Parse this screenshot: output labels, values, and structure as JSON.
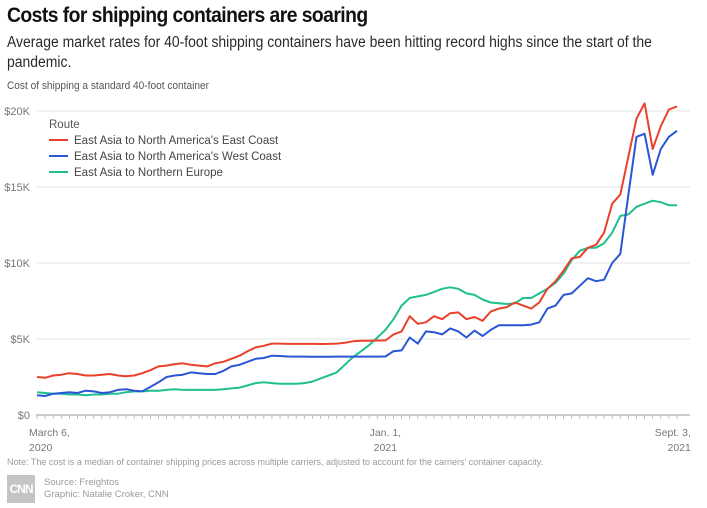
{
  "header": {
    "title": "Costs for shipping containers are soaring",
    "subtitle": "Average market rates for 40-foot shipping containers have been hitting record highs since the start of the pandemic.",
    "chart_label": "Cost of shipping a standard 40-foot container"
  },
  "footer": {
    "note": "Note: The cost is a median of container shipping prices across multiple carriers, adjusted to account for the carriers' container capacity.",
    "logo": "CNN",
    "source": "Source:  Freightos",
    "graphic": "Graphic: Natalie Croker, CNN"
  },
  "chart_data": {
    "type": "line",
    "title": "Costs for shipping containers are soaring",
    "subtitle": "Cost of shipping a standard 40-foot container",
    "xlabel": "",
    "ylabel": "",
    "x_start": "2020-03-06",
    "x_end": "2021-09-03",
    "x_interval": "weekly",
    "ylim": [
      0,
      20000
    ],
    "yticks": [
      0,
      5000,
      10000,
      15000,
      20000
    ],
    "ytick_labels": [
      "$0",
      "$5K",
      "$10K",
      "$15K",
      "$20K"
    ],
    "xtick_labels": [
      {
        "index": 0,
        "line1": "March 6,",
        "line2": "2020"
      },
      {
        "index": 43,
        "line1": "Jan. 1,",
        "line2": "2021"
      },
      {
        "index": 78,
        "line1": "Sept. 3,",
        "line2": "2021"
      }
    ],
    "grid": true,
    "legend": {
      "title": "Route",
      "position": "top-left"
    },
    "series": [
      {
        "name": "East Asia to North America's East Coast",
        "color": "#e8412c",
        "values": [
          2500,
          2450,
          2600,
          2650,
          2750,
          2700,
          2600,
          2600,
          2650,
          2700,
          2600,
          2550,
          2600,
          2750,
          2950,
          3200,
          3250,
          3350,
          3400,
          3300,
          3250,
          3200,
          3400,
          3500,
          3700,
          3900,
          4200,
          4450,
          4550,
          4700,
          4700,
          4680,
          4680,
          4680,
          4680,
          4670,
          4680,
          4700,
          4750,
          4850,
          4880,
          4880,
          4900,
          4900,
          5300,
          5500,
          6500,
          6000,
          6100,
          6500,
          6300,
          6700,
          6750,
          6300,
          6450,
          6200,
          6800,
          7000,
          7100,
          7400,
          7200,
          7000,
          7400,
          8300,
          8800,
          9500,
          10300,
          10400,
          11000,
          11200,
          12000,
          13900,
          14500,
          17000,
          19500,
          20500,
          17500,
          19000,
          20100,
          20300
        ]
      },
      {
        "name": "East Asia to North America's West Coast",
        "color": "#2a56d6",
        "values": [
          1300,
          1250,
          1400,
          1450,
          1500,
          1450,
          1600,
          1550,
          1450,
          1500,
          1650,
          1700,
          1600,
          1550,
          1850,
          2150,
          2500,
          2600,
          2650,
          2800,
          2750,
          2700,
          2700,
          2900,
          3200,
          3300,
          3500,
          3700,
          3750,
          3900,
          3880,
          3850,
          3840,
          3840,
          3830,
          3830,
          3830,
          3840,
          3840,
          3840,
          3840,
          3840,
          3840,
          3850,
          4200,
          4250,
          5100,
          4700,
          5500,
          5450,
          5300,
          5700,
          5500,
          5100,
          5550,
          5200,
          5600,
          5900,
          5900,
          5900,
          5900,
          5950,
          6100,
          7000,
          7200,
          7900,
          8000,
          8500,
          9000,
          8800,
          8900,
          10000,
          10600,
          14500,
          18300,
          18500,
          15800,
          17500,
          18300,
          18700
        ]
      },
      {
        "name": "East Asia to Northern Europe",
        "color": "#1fbf8f",
        "values": [
          1500,
          1450,
          1400,
          1400,
          1350,
          1350,
          1300,
          1350,
          1350,
          1400,
          1400,
          1500,
          1550,
          1550,
          1600,
          1600,
          1650,
          1700,
          1650,
          1650,
          1650,
          1650,
          1650,
          1700,
          1750,
          1800,
          1950,
          2100,
          2150,
          2100,
          2050,
          2050,
          2050,
          2100,
          2200,
          2400,
          2600,
          2800,
          3300,
          3800,
          4200,
          4600,
          5100,
          5600,
          6300,
          7200,
          7700,
          7800,
          7900,
          8100,
          8300,
          8400,
          8300,
          8000,
          7900,
          7600,
          7400,
          7350,
          7300,
          7350,
          7700,
          7700,
          8000,
          8300,
          8700,
          9300,
          10200,
          10800,
          11000,
          11000,
          11300,
          12000,
          13100,
          13200,
          13700,
          13900,
          14100,
          14000,
          13800,
          13800
        ]
      }
    ]
  }
}
